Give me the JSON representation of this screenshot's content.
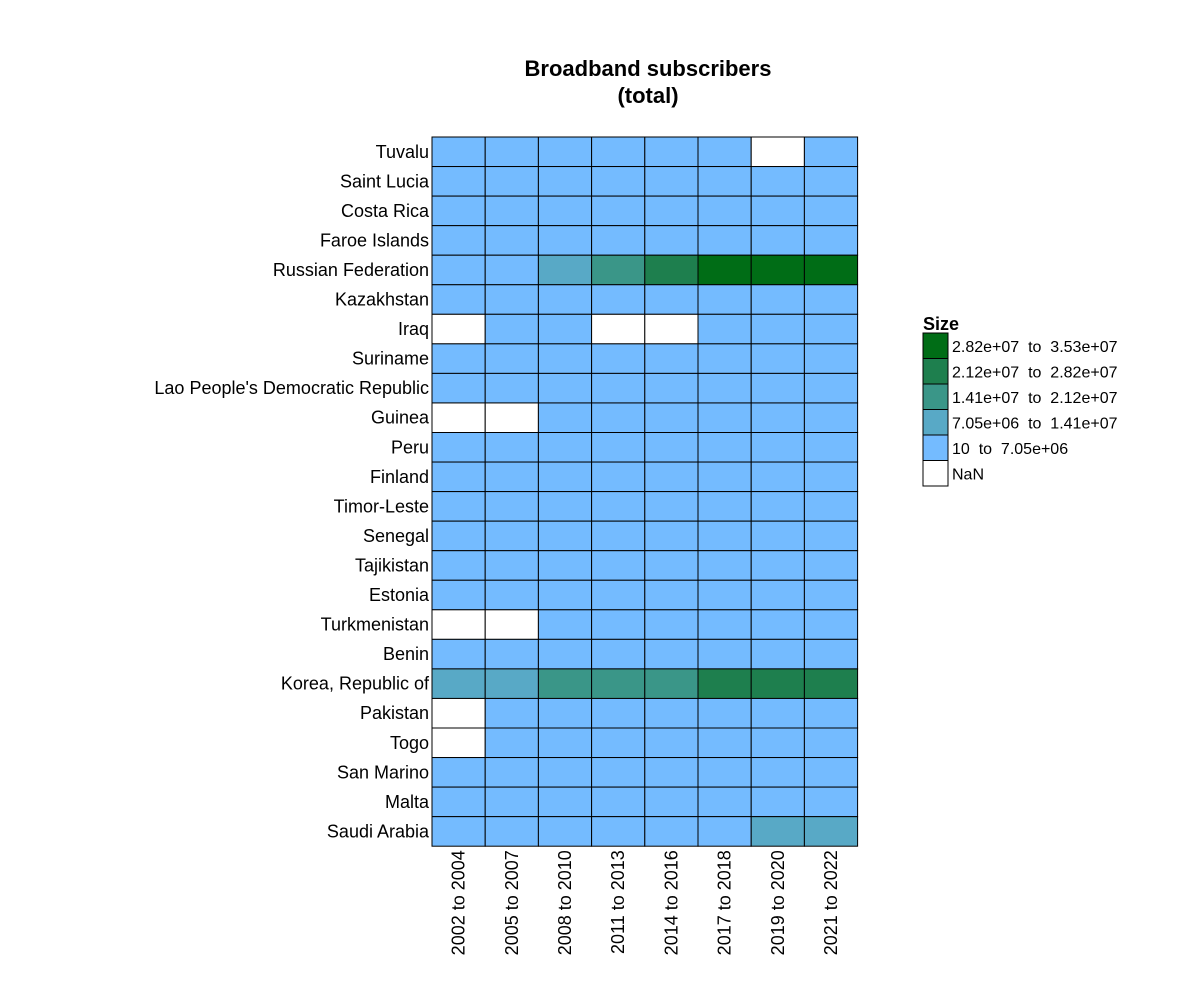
{
  "chart_data": {
    "type": "heatmap",
    "title": "Broadband subscribers",
    "subtitle": "(total)",
    "columns": [
      "2002 to 2004",
      "2005 to 2007",
      "2008 to 2010",
      "2011 to 2013",
      "2014 to 2016",
      "2017 to 2018",
      "2019 to 2020",
      "2021 to 2022"
    ],
    "rows": [
      "Tuvalu",
      "Saint Lucia",
      "Costa Rica",
      "Faroe Islands",
      "Russian Federation",
      "Kazakhstan",
      "Iraq",
      "Suriname",
      "Lao People's Democratic Republic",
      "Guinea",
      "Peru",
      "Finland",
      "Timor-Leste",
      "Senegal",
      "Tajikistan",
      "Estonia",
      "Turkmenistan",
      "Benin",
      "Korea, Republic of",
      "Pakistan",
      "Togo",
      "San Marino",
      "Malta",
      "Saudi Arabia"
    ],
    "bins": [
      {
        "label": "2.82e+07  to  3.53e+07",
        "color": "#006d16"
      },
      {
        "label": "2.12e+07  to  2.82e+07",
        "color": "#1e7f4e"
      },
      {
        "label": "1.41e+07  to  2.12e+07",
        "color": "#3a9688"
      },
      {
        "label": "7.05e+06  to  1.41e+07",
        "color": "#58a9c6"
      },
      {
        "label": "10  to  7.05e+06",
        "color": "#74bbff"
      },
      {
        "label": "NaN",
        "color": "#ffffff"
      }
    ],
    "cells": [
      [
        4,
        4,
        4,
        4,
        4,
        4,
        5,
        4
      ],
      [
        4,
        4,
        4,
        4,
        4,
        4,
        4,
        4
      ],
      [
        4,
        4,
        4,
        4,
        4,
        4,
        4,
        4
      ],
      [
        4,
        4,
        4,
        4,
        4,
        4,
        4,
        4
      ],
      [
        4,
        4,
        3,
        2,
        1,
        0,
        0,
        0
      ],
      [
        4,
        4,
        4,
        4,
        4,
        4,
        4,
        4
      ],
      [
        5,
        4,
        4,
        5,
        5,
        4,
        4,
        4
      ],
      [
        4,
        4,
        4,
        4,
        4,
        4,
        4,
        4
      ],
      [
        4,
        4,
        4,
        4,
        4,
        4,
        4,
        4
      ],
      [
        5,
        5,
        4,
        4,
        4,
        4,
        4,
        4
      ],
      [
        4,
        4,
        4,
        4,
        4,
        4,
        4,
        4
      ],
      [
        4,
        4,
        4,
        4,
        4,
        4,
        4,
        4
      ],
      [
        4,
        4,
        4,
        4,
        4,
        4,
        4,
        4
      ],
      [
        4,
        4,
        4,
        4,
        4,
        4,
        4,
        4
      ],
      [
        4,
        4,
        4,
        4,
        4,
        4,
        4,
        4
      ],
      [
        4,
        4,
        4,
        4,
        4,
        4,
        4,
        4
      ],
      [
        5,
        5,
        4,
        4,
        4,
        4,
        4,
        4
      ],
      [
        4,
        4,
        4,
        4,
        4,
        4,
        4,
        4
      ],
      [
        3,
        3,
        2,
        2,
        2,
        1,
        1,
        1
      ],
      [
        5,
        4,
        4,
        4,
        4,
        4,
        4,
        4
      ],
      [
        5,
        4,
        4,
        4,
        4,
        4,
        4,
        4
      ],
      [
        4,
        4,
        4,
        4,
        4,
        4,
        4,
        4
      ],
      [
        4,
        4,
        4,
        4,
        4,
        4,
        4,
        4
      ],
      [
        4,
        4,
        4,
        4,
        4,
        4,
        3,
        3
      ]
    ],
    "legend": {
      "title": "Size",
      "position": "right"
    },
    "grid": true
  }
}
